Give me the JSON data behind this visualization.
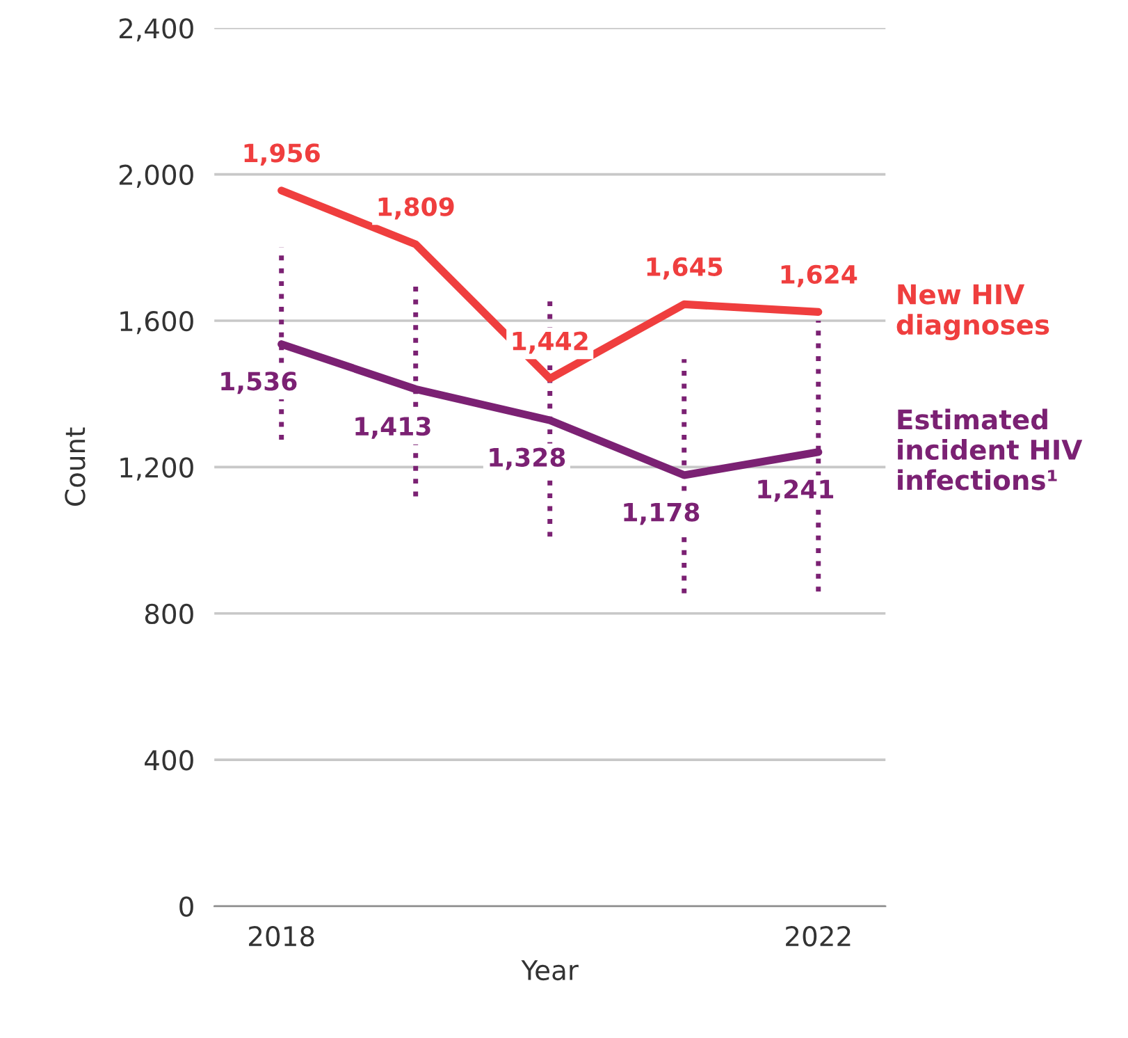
{
  "chart_data": {
    "type": "line",
    "xlabel": "Year",
    "ylabel": "Count",
    "x": [
      2018,
      2019,
      2020,
      2021,
      2022
    ],
    "series": [
      {
        "name": "New HIV diagnoses",
        "color": "#ef3e3e",
        "values": [
          1956,
          1809,
          1442,
          1645,
          1624
        ],
        "value_labels": [
          "1,956",
          "1,809",
          "1,442",
          "1,645",
          "1,624"
        ]
      },
      {
        "name": "Estimated incident HIV infections¹",
        "color": "#7b2173",
        "values": [
          1536,
          1413,
          1328,
          1178,
          1241
        ],
        "value_labels": [
          "1,536",
          "1,413",
          "1,328",
          "1,178",
          "1,241"
        ],
        "errors": [
          [
            1275,
            1800
          ],
          [
            1120,
            1700
          ],
          [
            1010,
            1655
          ],
          [
            855,
            1495
          ],
          [
            860,
            1600
          ]
        ]
      }
    ],
    "xlim": [
      2017.5,
      2022.5
    ],
    "xticks": [
      2018,
      2022
    ],
    "ylim": [
      0,
      2400
    ],
    "yticks": [
      {
        "value": 0,
        "label": "0"
      },
      {
        "value": 400,
        "label": "400"
      },
      {
        "value": 800,
        "label": "800"
      },
      {
        "value": 1200,
        "label": "1,200"
      },
      {
        "value": 1600,
        "label": "1,600"
      },
      {
        "value": 2000,
        "label": "2,000"
      },
      {
        "value": 2400,
        "label": "2,400"
      }
    ],
    "grid": "y",
    "marker": "none",
    "line_style": "solid"
  }
}
